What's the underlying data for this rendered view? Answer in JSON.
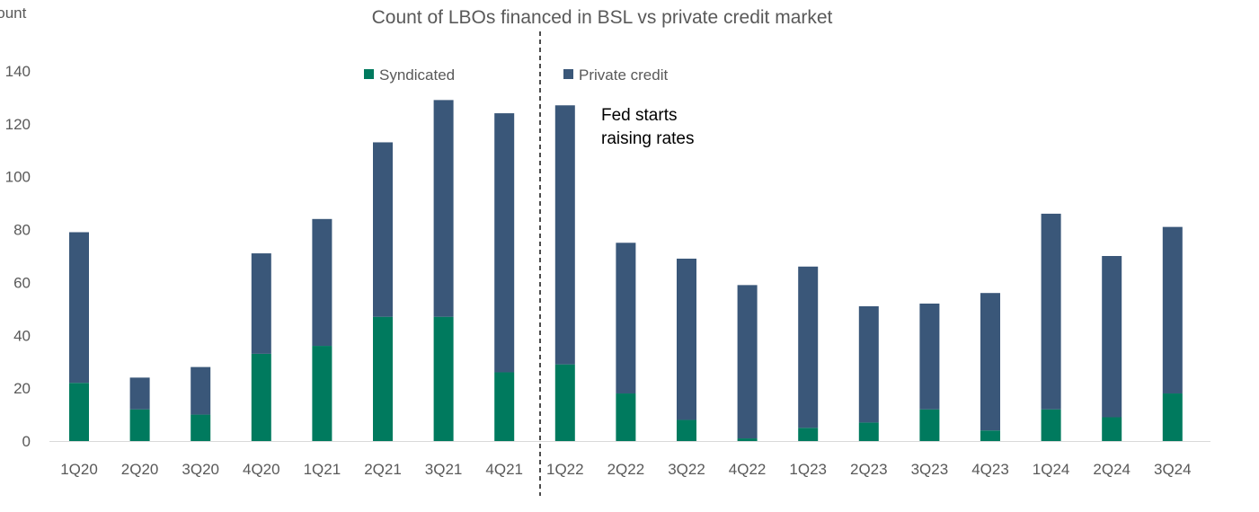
{
  "chart_data": {
    "type": "bar",
    "stacked": true,
    "title": "Count of LBOs financed in BSL vs private credit market",
    "ylabel": "Count",
    "xlabel": "",
    "ylim": [
      0,
      140
    ],
    "yticks": [
      0,
      20,
      40,
      60,
      80,
      100,
      120,
      140
    ],
    "grid": false,
    "legend": "top",
    "categories": [
      "1Q20",
      "2Q20",
      "3Q20",
      "4Q20",
      "1Q21",
      "2Q21",
      "3Q21",
      "4Q21",
      "1Q22",
      "2Q22",
      "3Q22",
      "4Q22",
      "1Q23",
      "2Q23",
      "3Q23",
      "4Q23",
      "1Q24",
      "2Q24",
      "3Q24"
    ],
    "series": [
      {
        "name": "Syndicated",
        "color": "#007A5E",
        "values": [
          22,
          12,
          10,
          33,
          36,
          47,
          47,
          26,
          29,
          18,
          8,
          1,
          5,
          7,
          12,
          4,
          12,
          9,
          18
        ]
      },
      {
        "name": "Private credit",
        "color": "#3A5779",
        "values": [
          57,
          12,
          18,
          38,
          48,
          66,
          82,
          98,
          98,
          57,
          61,
          58,
          61,
          44,
          40,
          52,
          74,
          61,
          63
        ]
      }
    ],
    "annotation": {
      "text_lines": [
        "Fed starts",
        "raising rates"
      ],
      "between": [
        "4Q21",
        "1Q22"
      ]
    }
  }
}
